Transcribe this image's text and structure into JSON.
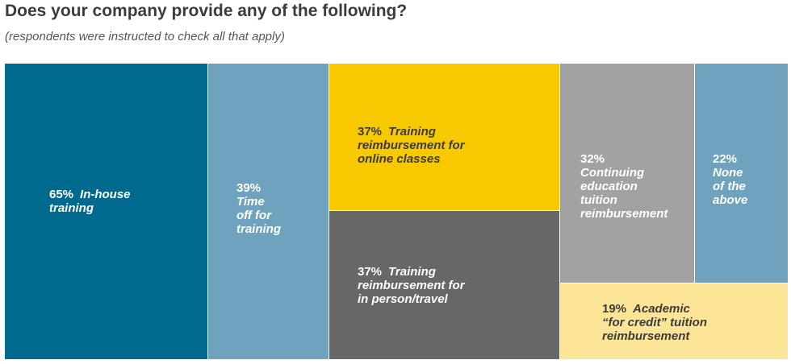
{
  "header": {
    "title": "Does your company provide any of the following?",
    "subtitle": "(respondents were instructed to check all that apply)"
  },
  "chart_data": {
    "type": "treemap",
    "title": "Does your company provide any of the following?",
    "subtitle": "(respondents were instructed to check all that apply)",
    "unit": "%",
    "items": [
      {
        "id": "in-house-training",
        "value": 65,
        "pct": "65%",
        "lines": [
          "In-house",
          "training"
        ],
        "color": "#006a8e",
        "text_color": "#ffffff"
      },
      {
        "id": "time-off-for-training",
        "value": 39,
        "pct": "39%",
        "lines": [
          "Time",
          "off for",
          "training"
        ],
        "color": "#6fa3bd",
        "text_color": "#ffffff"
      },
      {
        "id": "training-reimbursement-online",
        "value": 37,
        "pct": "37%",
        "lines": [
          "Training",
          "reimbursement for",
          "online classes"
        ],
        "color": "#f8c800",
        "text_color": "#3c3c3c"
      },
      {
        "id": "training-reimbursement-in-person",
        "value": 37,
        "pct": "37%",
        "lines": [
          "Training",
          "reimbursement for",
          "in person/travel"
        ],
        "color": "#666766",
        "text_color": "#ffffff"
      },
      {
        "id": "continuing-education-tuition",
        "value": 32,
        "pct": "32%",
        "lines": [
          "Continuing",
          "education",
          "tuition",
          "reimbursement"
        ],
        "color": "#a2a2a2",
        "text_color": "#ffffff"
      },
      {
        "id": "none-of-the-above",
        "value": 22,
        "pct": "22%",
        "lines": [
          "None",
          "of the",
          "above"
        ],
        "color": "#6fa3bd",
        "text_color": "#ffffff"
      },
      {
        "id": "academic-for-credit-tuition",
        "value": 19,
        "pct": "19%",
        "lines": [
          "Academic",
          "“for credit” tuition",
          "reimbursement"
        ],
        "color": "#fde597",
        "text_color": "#3c3c3c"
      }
    ]
  }
}
